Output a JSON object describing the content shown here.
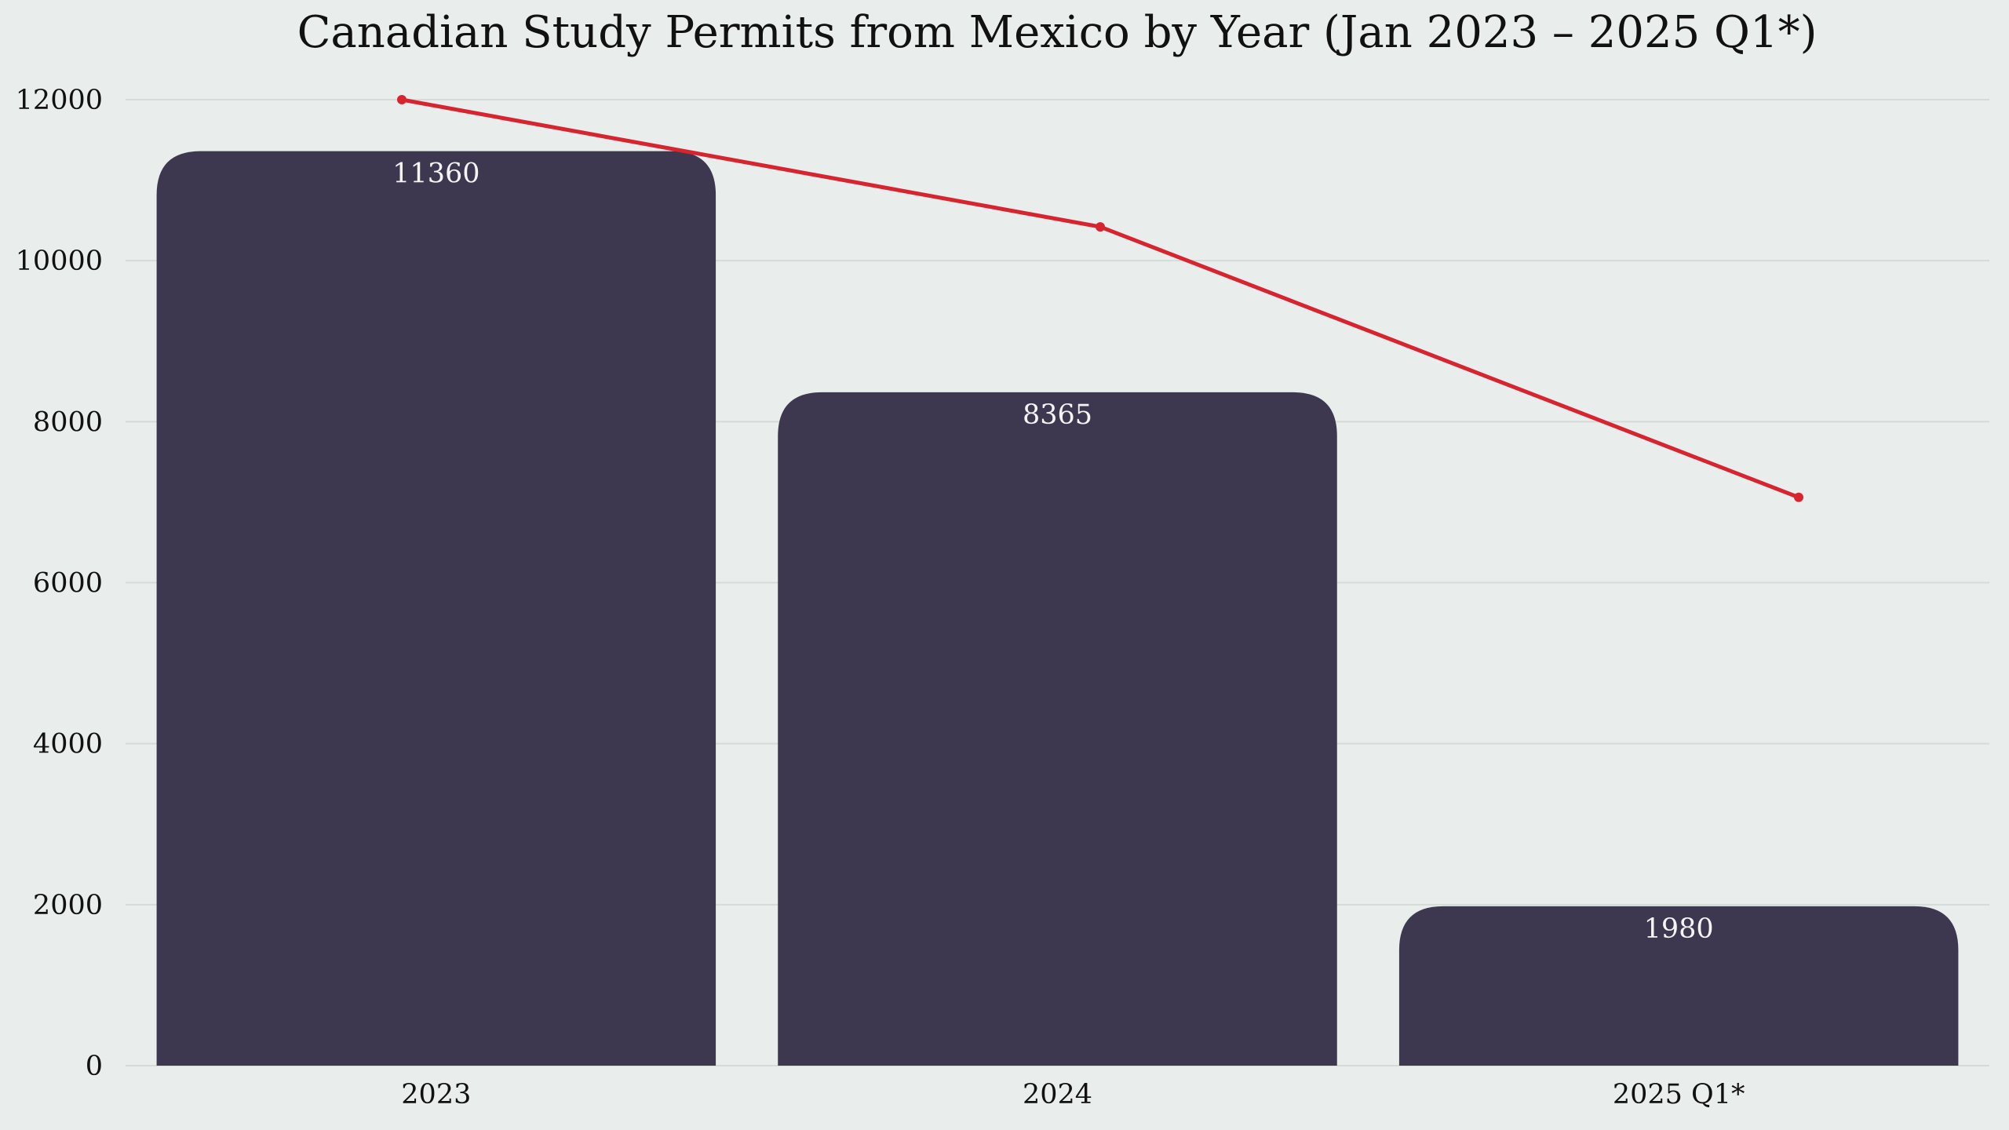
{
  "chart_data": {
    "type": "bar",
    "title": "Canadian Study Permits from Mexico by Year (Jan 2023 – 2025 Q1*)",
    "xlabel": "",
    "ylabel": "",
    "categories": [
      "2023",
      "2024",
      "2025 Q1*"
    ],
    "values": [
      11360,
      8365,
      1980
    ],
    "value_labels": [
      "11360",
      "8365",
      "1980"
    ],
    "trend_line": {
      "type": "line",
      "values": [
        12000,
        10420,
        7060
      ]
    },
    "ylim": [
      0,
      12000
    ],
    "yticks": [
      0,
      2000,
      4000,
      6000,
      8000,
      10000,
      12000
    ],
    "ytick_labels": [
      "0",
      "2000",
      "4000",
      "6000",
      "8000",
      "10000",
      "12000"
    ],
    "grid": true,
    "legend": "none",
    "colors": {
      "background": "#E9EDEB",
      "bar": "#3D3850",
      "trend": "#D7242F",
      "grid": "#D6DAD8",
      "text": "#111111",
      "bar_label": "#F4F4F4"
    }
  }
}
